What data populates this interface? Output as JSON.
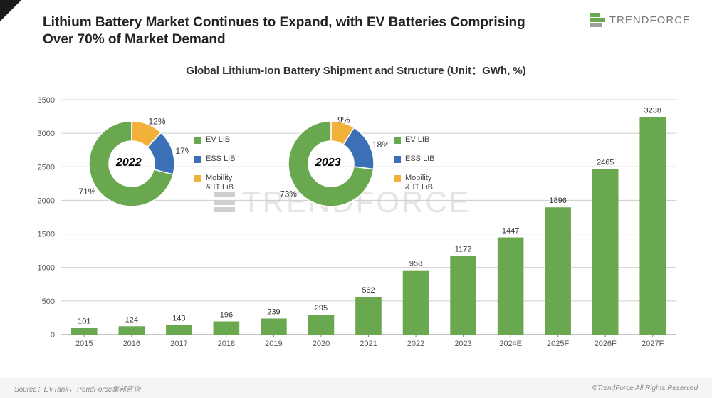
{
  "title": "Lithium Battery Market Continues to Expand, with EV Batteries Comprising Over 70% of Market Demand",
  "subtitle": "Global Lithium-Ion Battery Shipment and Structure (Unit：GWh, %)",
  "logo_text": "TRENDFORCE",
  "footer_left": "Source：EVTank，TrendForce集邦咨询",
  "footer_right": "©TrendForce All Rights Reserved",
  "watermark_text": "TRENDFORCE",
  "bar_chart": {
    "type": "bar",
    "categories": [
      "2015",
      "2016",
      "2017",
      "2018",
      "2019",
      "2020",
      "2021",
      "2022",
      "2023",
      "2024E",
      "2025F",
      "2026F",
      "2027F"
    ],
    "values": [
      101,
      124,
      143,
      196,
      239,
      295,
      562,
      958,
      1172,
      1447,
      1896,
      2465,
      3238
    ],
    "bar_color": "#6aa84f",
    "ylim": [
      0,
      3500
    ],
    "ytick_step": 500,
    "yticks": [
      0,
      500,
      1000,
      1500,
      2000,
      2500,
      3000,
      3500
    ],
    "grid_color": "#cccccc",
    "axis_color": "#888888",
    "label_fontsize": 11,
    "value_fontsize": 11,
    "bar_width": 0.55,
    "background_color": "#ffffff"
  },
  "donuts": [
    {
      "year": "2022",
      "slices": [
        {
          "label": "EV  LIB",
          "value": 71,
          "color": "#6aa84f"
        },
        {
          "label": "ESS  LIB",
          "value": 17,
          "color": "#3b6fb6"
        },
        {
          "label": "Mobility & IT LiB",
          "value": 12,
          "color": "#f1b13b"
        }
      ],
      "inner_radius": 32,
      "outer_radius": 60,
      "start_angle_deg": 90,
      "percent_fontsize": 12,
      "year_fontsize": 16
    },
    {
      "year": "2023",
      "slices": [
        {
          "label": "EV  LIB",
          "value": 73,
          "color": "#6aa84f"
        },
        {
          "label": "ESS  LIB",
          "value": 18,
          "color": "#3b6fb6"
        },
        {
          "label": "Mobility & IT LiB",
          "value": 9,
          "color": "#f1b13b"
        }
      ],
      "inner_radius": 32,
      "outer_radius": 60,
      "start_angle_deg": 90,
      "percent_fontsize": 12,
      "year_fontsize": 16
    }
  ],
  "legend_items": [
    {
      "label": "EV  LIB",
      "color": "#6aa84f"
    },
    {
      "label": "ESS  LIB",
      "color": "#3b6fb6"
    },
    {
      "label": "Mobility\n& IT LiB",
      "color": "#f1b13b"
    }
  ]
}
